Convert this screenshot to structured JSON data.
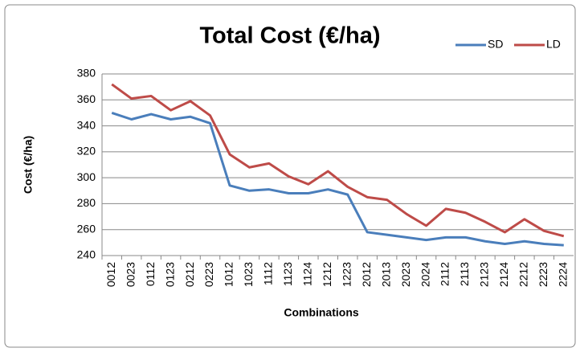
{
  "chart_data": {
    "type": "line",
    "title": "Total Cost (€/ha)",
    "x_label": "Combinations",
    "y_label": "Cost (€/ha)",
    "categories": [
      "0012",
      "0023",
      "0112",
      "0123",
      "0212",
      "0223",
      "1012",
      "1023",
      "1112",
      "1123",
      "1124",
      "1212",
      "1223",
      "2012",
      "2013",
      "2023",
      "2024",
      "2112",
      "2113",
      "2123",
      "2124",
      "2212",
      "2223",
      "2224"
    ],
    "series": [
      {
        "name": "SD",
        "color": "#4a7ebb",
        "values": [
          350,
          345,
          349,
          345,
          347,
          342,
          294,
          290,
          291,
          288,
          288,
          291,
          287,
          258,
          256,
          254,
          252,
          254,
          254,
          251,
          249,
          251,
          249,
          248
        ]
      },
      {
        "name": "LD",
        "color": "#be4b48",
        "values": [
          372,
          361,
          363,
          352,
          359,
          348,
          318,
          308,
          311,
          301,
          295,
          305,
          293,
          285,
          283,
          272,
          263,
          276,
          273,
          266,
          258,
          268,
          259,
          255
        ]
      }
    ],
    "ylim": [
      240,
      380
    ],
    "yticks": [
      240,
      260,
      280,
      300,
      320,
      340,
      360,
      380
    ],
    "grid": true,
    "legend": "top-right"
  }
}
